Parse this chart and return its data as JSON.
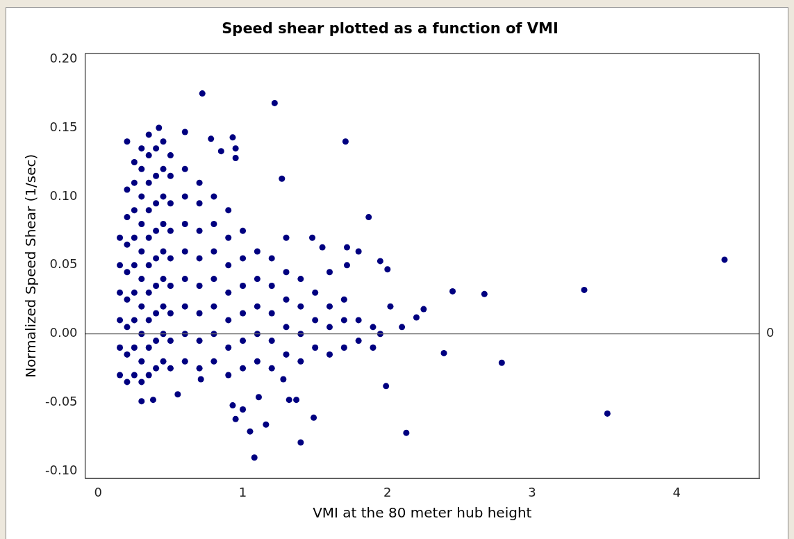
{
  "chart_data": {
    "type": "scatter",
    "title": "Speed shear plotted as a function of VMI",
    "xlabel": "VMI at the 80 meter hub height",
    "ylabel": "Normalized Speed Shear (1/sec)",
    "xlim": [
      -0.09,
      4.57
    ],
    "ylim": [
      -0.105,
      0.204
    ],
    "xticks": [
      0,
      1,
      2,
      3,
      4
    ],
    "yticks": [
      {
        "value": -0.1,
        "label": "-0.10"
      },
      {
        "value": -0.05,
        "label": "-0.05"
      },
      {
        "value": 0,
        "label": "0.00"
      },
      {
        "value": 0.05,
        "label": "0.05"
      },
      {
        "value": 0.1,
        "label": "0.10"
      },
      {
        "value": 0.15,
        "label": "0.15"
      },
      {
        "value": 0.2,
        "label": "0.20"
      }
    ],
    "grid": false,
    "legend": false,
    "marker": "circle",
    "ref_lines": [
      {
        "axis": "y",
        "value": 0,
        "label": "0",
        "color": "#666666"
      }
    ],
    "series": [
      {
        "color": "#000080",
        "x": [
          0.15,
          0.15,
          0.15,
          0.15,
          0.15,
          0.15,
          0.2,
          0.2,
          0.2,
          0.2,
          0.2,
          0.2,
          0.2,
          0.2,
          0.25,
          0.25,
          0.25,
          0.25,
          0.25,
          0.25,
          0.25,
          0.25,
          0.25,
          0.3,
          0.3,
          0.3,
          0.3,
          0.3,
          0.3,
          0.3,
          0.3,
          0.3,
          0.3,
          0.35,
          0.35,
          0.35,
          0.35,
          0.35,
          0.35,
          0.35,
          0.35,
          0.35,
          0.35,
          0.4,
          0.4,
          0.4,
          0.4,
          0.4,
          0.4,
          0.4,
          0.4,
          0.4,
          0.45,
          0.45,
          0.45,
          0.45,
          0.45,
          0.45,
          0.45,
          0.45,
          0.45,
          0.5,
          0.5,
          0.5,
          0.5,
          0.5,
          0.5,
          0.5,
          0.5,
          0.5,
          0.6,
          0.6,
          0.6,
          0.6,
          0.6,
          0.6,
          0.6,
          0.6,
          0.7,
          0.7,
          0.7,
          0.7,
          0.7,
          0.7,
          0.7,
          0.7,
          0.8,
          0.8,
          0.8,
          0.8,
          0.8,
          0.8,
          0.8,
          0.9,
          0.9,
          0.9,
          0.9,
          0.9,
          0.9,
          0.9,
          1.0,
          1.0,
          1.0,
          1.0,
          1.0,
          1.0,
          1.1,
          1.1,
          1.1,
          1.1,
          1.1,
          1.2,
          1.2,
          1.2,
          1.2,
          1.2,
          1.3,
          1.3,
          1.3,
          1.3,
          1.4,
          1.4,
          1.4,
          1.4,
          1.5,
          1.5,
          1.5,
          1.6,
          1.6,
          1.6,
          1.7,
          1.7,
          1.7,
          1.8,
          1.8,
          1.9,
          1.9,
          0.72,
          1.22,
          1.71,
          1.27,
          1.87,
          2.0,
          1.95,
          2.45,
          2.67,
          3.36,
          4.33,
          2.79,
          3.52,
          2.13,
          2.39,
          1.99,
          1.08,
          1.4,
          1.05,
          1.16,
          1.49,
          0.93,
          0.95,
          1.0,
          1.11,
          1.28,
          1.32,
          1.37,
          0.55,
          0.3,
          0.38,
          0.71,
          2.25,
          2.2,
          2.1,
          2.02,
          1.95,
          1.8,
          1.72,
          1.72,
          1.6,
          1.55,
          1.48,
          1.3,
          0.93,
          0.95,
          0.95,
          0.85,
          0.78,
          0.6,
          0.42,
          0.2
        ],
        "values": [
          -0.03,
          -0.01,
          0.01,
          0.03,
          0.05,
          0.07,
          -0.035,
          -0.015,
          0.005,
          0.025,
          0.045,
          0.065,
          0.085,
          0.105,
          -0.03,
          -0.01,
          0.01,
          0.03,
          0.05,
          0.07,
          0.09,
          0.11,
          0.125,
          -0.035,
          -0.02,
          0,
          0.02,
          0.04,
          0.06,
          0.08,
          0.1,
          0.12,
          0.135,
          -0.03,
          -0.01,
          0.01,
          0.03,
          0.05,
          0.07,
          0.09,
          0.11,
          0.13,
          0.145,
          -0.025,
          -0.005,
          0.015,
          0.035,
          0.055,
          0.075,
          0.095,
          0.115,
          0.135,
          -0.02,
          0,
          0.02,
          0.04,
          0.06,
          0.08,
          0.1,
          0.12,
          0.14,
          -0.025,
          -0.005,
          0.015,
          0.035,
          0.055,
          0.075,
          0.095,
          0.115,
          0.13,
          -0.02,
          0,
          0.02,
          0.04,
          0.06,
          0.08,
          0.1,
          0.12,
          -0.025,
          -0.005,
          0.015,
          0.035,
          0.055,
          0.075,
          0.095,
          0.11,
          -0.02,
          0,
          0.02,
          0.04,
          0.06,
          0.08,
          0.1,
          -0.03,
          -0.01,
          0.01,
          0.03,
          0.05,
          0.07,
          0.09,
          -0.025,
          -0.005,
          0.015,
          0.035,
          0.055,
          0.075,
          -0.02,
          0,
          0.02,
          0.04,
          0.06,
          -0.025,
          -0.005,
          0.015,
          0.035,
          0.055,
          -0.015,
          0.005,
          0.025,
          0.045,
          -0.02,
          0,
          0.02,
          0.04,
          -0.01,
          0.01,
          0.03,
          -0.015,
          0.005,
          0.02,
          -0.01,
          0.01,
          0.025,
          -0.005,
          0.01,
          -0.01,
          0.005,
          0.175,
          0.168,
          0.14,
          0.113,
          0.085,
          0.047,
          0.053,
          0.031,
          0.029,
          0.032,
          0.054,
          -0.021,
          -0.058,
          -0.072,
          -0.014,
          -0.038,
          -0.09,
          -0.079,
          -0.071,
          -0.066,
          -0.061,
          -0.052,
          -0.062,
          -0.055,
          -0.046,
          -0.033,
          -0.048,
          -0.048,
          -0.044,
          -0.049,
          -0.048,
          -0.033,
          0.018,
          0.012,
          0.005,
          0.02,
          0,
          0.06,
          0.063,
          0.05,
          0.045,
          0.063,
          0.07,
          0.07,
          0.143,
          0.135,
          0.128,
          0.133,
          0.142,
          0.147,
          0.15,
          0.14
        ]
      }
    ]
  }
}
